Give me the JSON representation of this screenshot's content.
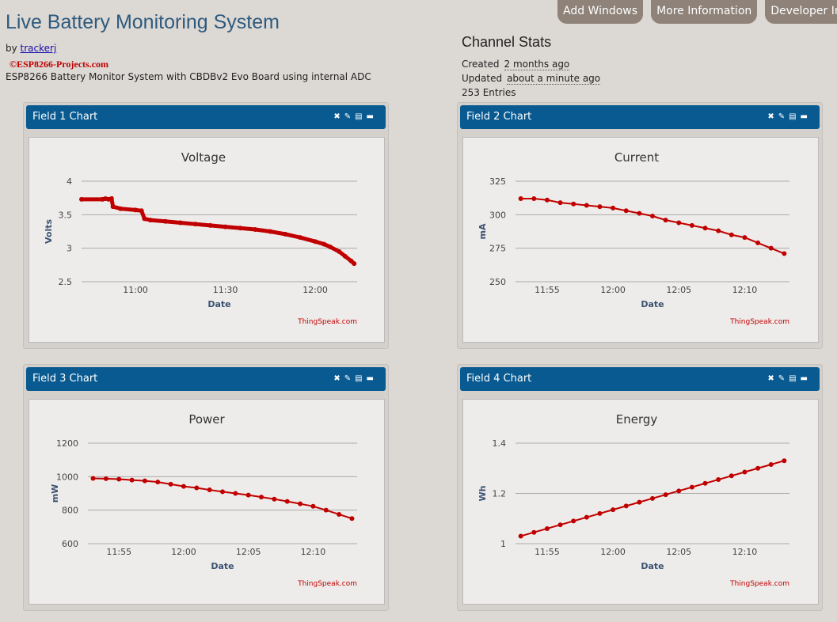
{
  "header": {
    "title": "Live Battery Monitoring System",
    "by_label": "by",
    "author": "trackerj",
    "watermark": "©ESP8266-Projects.com",
    "description": "ESP8266 Battery Monitor System with CBDBv2 Evo Board using internal ADC"
  },
  "tabs": [
    "Add Windows",
    "More Information",
    "Developer Info"
  ],
  "stats": {
    "title": "Channel Stats",
    "created_label": "Created",
    "created": "2 months ago",
    "updated_label": "Updated",
    "updated": "about a minute ago",
    "entries": "253 Entries"
  },
  "panel_icons": [
    "close-icon",
    "pencil-icon",
    "comment-icon",
    "minimize-icon"
  ],
  "line_color": "#c00000",
  "header_color": "#085a91",
  "chart_data": [
    {
      "panel": "Field 1 Chart",
      "type": "line",
      "title": "Voltage",
      "xlabel": "Date",
      "ylabel": "Volts",
      "credit": "ThingSpeak.com",
      "ylim": [
        2.5,
        4
      ],
      "yticks": [
        "4",
        "3.5",
        "3",
        "2.5"
      ],
      "xlim": [
        "10:42",
        "12:14"
      ],
      "xticks": [
        "11:00",
        "11:30",
        "12:00"
      ],
      "points": [
        [
          "10:42",
          3.73
        ],
        [
          "10:49",
          3.73
        ],
        [
          "10:50",
          3.74
        ],
        [
          "10:51",
          3.73
        ],
        [
          "10:52",
          3.74
        ],
        [
          "10:52.5",
          3.62
        ],
        [
          "10:55",
          3.59
        ],
        [
          "11:00",
          3.57
        ],
        [
          "11:02",
          3.56
        ],
        [
          "11:03",
          3.44
        ],
        [
          "11:05",
          3.42
        ],
        [
          "11:10",
          3.4
        ],
        [
          "11:15",
          3.38
        ],
        [
          "11:20",
          3.36
        ],
        [
          "11:25",
          3.34
        ],
        [
          "11:30",
          3.32
        ],
        [
          "11:35",
          3.3
        ],
        [
          "11:40",
          3.28
        ],
        [
          "11:45",
          3.25
        ],
        [
          "11:50",
          3.21
        ],
        [
          "11:55",
          3.16
        ],
        [
          "12:00",
          3.1
        ],
        [
          "12:03",
          3.06
        ],
        [
          "12:05",
          3.02
        ],
        [
          "12:08",
          2.95
        ],
        [
          "12:10",
          2.88
        ],
        [
          "12:12",
          2.81
        ],
        [
          "12:13",
          2.77
        ]
      ]
    },
    {
      "panel": "Field 2 Chart",
      "type": "line",
      "title": "Current",
      "xlabel": "Date",
      "ylabel": "mA",
      "credit": "ThingSpeak.com",
      "ylim": [
        250,
        325
      ],
      "yticks": [
        "325",
        "300",
        "275",
        "250"
      ],
      "xlim": [
        "11:52.6",
        "12:13.4"
      ],
      "xticks": [
        "11:55",
        "12:00",
        "12:05",
        "12:10"
      ],
      "points": [
        [
          "11:53",
          312
        ],
        [
          "11:54",
          312
        ],
        [
          "11:55",
          311
        ],
        [
          "11:56",
          309
        ],
        [
          "11:57",
          308
        ],
        [
          "11:58",
          307
        ],
        [
          "11:59",
          306
        ],
        [
          "12:00",
          305
        ],
        [
          "12:01",
          303
        ],
        [
          "12:02",
          301
        ],
        [
          "12:03",
          299
        ],
        [
          "12:04",
          296
        ],
        [
          "12:05",
          294
        ],
        [
          "12:06",
          292
        ],
        [
          "12:07",
          290
        ],
        [
          "12:08",
          288
        ],
        [
          "12:09",
          285
        ],
        [
          "12:10",
          283
        ],
        [
          "12:11",
          279
        ],
        [
          "12:12",
          275
        ],
        [
          "12:13",
          271
        ]
      ]
    },
    {
      "panel": "Field 3 Chart",
      "type": "line",
      "title": "Power",
      "xlabel": "Date",
      "ylabel": "mW",
      "credit": "ThingSpeak.com",
      "ylim": [
        600,
        1200
      ],
      "yticks": [
        "1200",
        "1000",
        "800",
        "600"
      ],
      "xlim": [
        "11:52.6",
        "12:13.4"
      ],
      "xticks": [
        "11:55",
        "12:00",
        "12:05",
        "12:10"
      ],
      "points": [
        [
          "11:53",
          990
        ],
        [
          "11:54",
          988
        ],
        [
          "11:55",
          985
        ],
        [
          "11:56",
          980
        ],
        [
          "11:57",
          975
        ],
        [
          "11:58",
          968
        ],
        [
          "11:59",
          955
        ],
        [
          "12:00",
          942
        ],
        [
          "12:01",
          933
        ],
        [
          "12:02",
          921
        ],
        [
          "12:03",
          910
        ],
        [
          "12:04",
          900
        ],
        [
          "12:05",
          890
        ],
        [
          "12:06",
          878
        ],
        [
          "12:07",
          866
        ],
        [
          "12:08",
          852
        ],
        [
          "12:09",
          838
        ],
        [
          "12:10",
          823
        ],
        [
          "12:11",
          800
        ],
        [
          "12:12",
          775
        ],
        [
          "12:13",
          750
        ]
      ]
    },
    {
      "panel": "Field 4 Chart",
      "type": "line",
      "title": "Energy",
      "xlabel": "Date",
      "ylabel": "Wh",
      "credit": "ThingSpeak.com",
      "ylim": [
        1,
        1.4
      ],
      "yticks": [
        "1.4",
        "1.2",
        "1"
      ],
      "xlim": [
        "11:52.6",
        "12:13.4"
      ],
      "xticks": [
        "11:55",
        "12:00",
        "12:05",
        "12:10"
      ],
      "points": [
        [
          "11:53",
          1.03
        ],
        [
          "11:54",
          1.045
        ],
        [
          "11:55",
          1.06
        ],
        [
          "11:56",
          1.075
        ],
        [
          "11:57",
          1.09
        ],
        [
          "11:58",
          1.105
        ],
        [
          "11:59",
          1.12
        ],
        [
          "12:00",
          1.135
        ],
        [
          "12:01",
          1.15
        ],
        [
          "12:02",
          1.165
        ],
        [
          "12:03",
          1.18
        ],
        [
          "12:04",
          1.195
        ],
        [
          "12:05",
          1.21
        ],
        [
          "12:06",
          1.225
        ],
        [
          "12:07",
          1.24
        ],
        [
          "12:08",
          1.255
        ],
        [
          "12:09",
          1.27
        ],
        [
          "12:10",
          1.285
        ],
        [
          "12:11",
          1.3
        ],
        [
          "12:12",
          1.315
        ],
        [
          "12:13",
          1.33
        ]
      ]
    }
  ]
}
